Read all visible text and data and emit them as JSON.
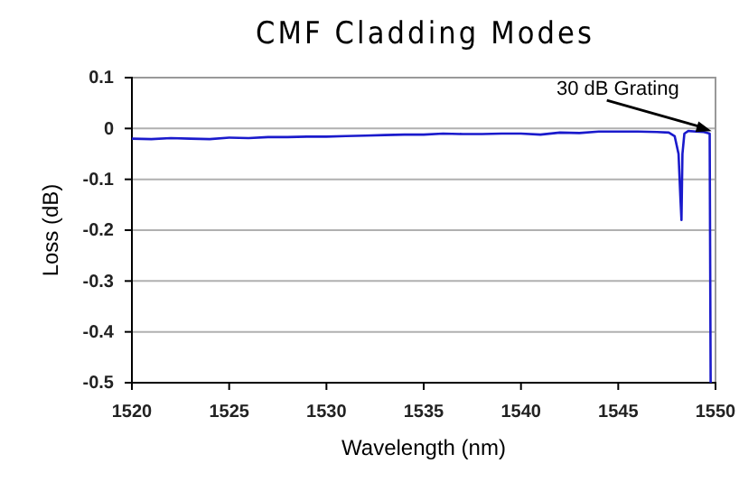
{
  "chart_data": {
    "type": "line",
    "title": "CMF Cladding Modes",
    "xlabel": "Wavelength (nm)",
    "ylabel": "Loss (dB)",
    "series": [
      {
        "color": "#1a1acc",
        "x": [
          1520,
          1521,
          1522,
          1523,
          1524,
          1525,
          1526,
          1527,
          1528,
          1529,
          1530,
          1531,
          1532,
          1533,
          1534,
          1535,
          1536,
          1537,
          1538,
          1539,
          1540,
          1541,
          1542,
          1543,
          1544,
          1545,
          1546,
          1547,
          1547.6,
          1547.9,
          1548.1,
          1548.2,
          1548.25,
          1548.3,
          1548.4,
          1548.6,
          1549,
          1549.4,
          1549.7,
          1549.75
        ],
        "values": [
          -0.02,
          -0.021,
          -0.019,
          -0.02,
          -0.021,
          -0.018,
          -0.019,
          -0.017,
          -0.017,
          -0.016,
          -0.016,
          -0.015,
          -0.014,
          -0.013,
          -0.012,
          -0.012,
          -0.01,
          -0.011,
          -0.011,
          -0.01,
          -0.01,
          -0.012,
          -0.008,
          -0.009,
          -0.006,
          -0.006,
          -0.006,
          -0.007,
          -0.008,
          -0.015,
          -0.05,
          -0.14,
          -0.18,
          -0.05,
          -0.01,
          -0.005,
          -0.006,
          -0.007,
          -0.01,
          -0.5
        ]
      }
    ],
    "xlim": [
      1520,
      1550
    ],
    "xticks": [
      1520,
      1525,
      1530,
      1535,
      1540,
      1545,
      1550
    ],
    "ylim": [
      -0.5,
      0.1
    ],
    "yticks": [
      {
        "value": -0.5,
        "label": "-0.5"
      },
      {
        "value": -0.4,
        "label": "-0.4"
      },
      {
        "value": -0.3,
        "label": "-0.3"
      },
      {
        "value": -0.2,
        "label": "-0.2"
      },
      {
        "value": -0.1,
        "label": "-0.1"
      },
      {
        "value": 0,
        "label": "0"
      },
      {
        "value": 0.1,
        "label": "0.1"
      }
    ],
    "grid": "y",
    "annotations": [
      {
        "text": "30 dB Grating",
        "x": 1549.8,
        "y": -0.005
      }
    ]
  }
}
